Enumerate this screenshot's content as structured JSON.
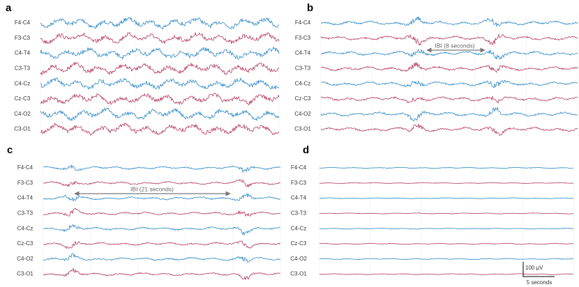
{
  "panels": [
    {
      "label": "a",
      "channels": [
        "F4-C4",
        "F3-C3",
        "C4-T4",
        "C3-T3",
        "C4-Cz",
        "Cz-C3",
        "C4-O2",
        "C3-O1"
      ]
    },
    {
      "label": "b",
      "channels": [
        "F4-C4",
        "F3-C3",
        "C4-T4",
        "C3-T3",
        "C4-Cz",
        "Cz-C3",
        "C4-O2",
        "C3-O1"
      ],
      "annotation": "IBI (8 seconds)"
    },
    {
      "label": "c",
      "channels": [
        "F4-C4",
        "F3-C3",
        "C4-T4",
        "C3-T3",
        "C4-Cz",
        "Cz-C3",
        "C4-O2",
        "C3-O1"
      ],
      "annotation": "IBI (21 seconds)"
    },
    {
      "label": "d",
      "channels": [
        "F4-C4",
        "F3-C3",
        "C4-T4",
        "C3-T3",
        "C4-Cz",
        "Cz-C3",
        "C4-O2",
        "C3-O1"
      ]
    }
  ],
  "scale_bar": {
    "amplitude": "100 μV",
    "time": "5 seconds"
  }
}
